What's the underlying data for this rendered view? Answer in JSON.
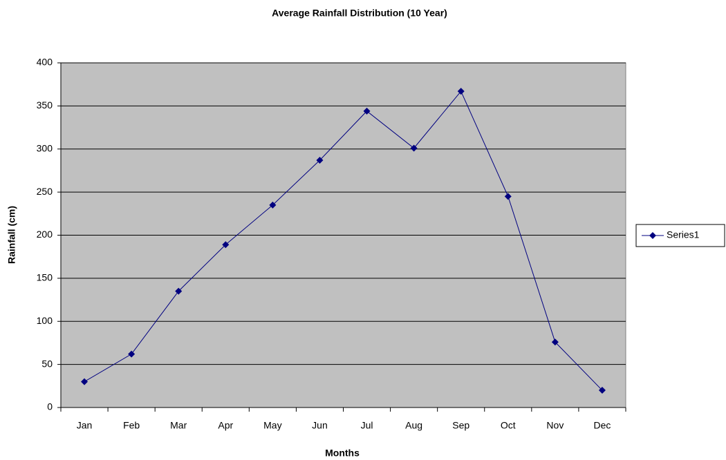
{
  "chart_data": {
    "type": "line",
    "title": "Average Rainfall Distribution (10 Year)",
    "x_label": "Months",
    "y_label": "Rainfall (cm)",
    "categories": [
      "Jan",
      "Feb",
      "Mar",
      "Apr",
      "May",
      "Jun",
      "Jul",
      "Aug",
      "Sep",
      "Oct",
      "Nov",
      "Dec"
    ],
    "series": [
      {
        "name": "Series1",
        "color": "#000080",
        "values": [
          30,
          62,
          135,
          189,
          235,
          287,
          344,
          301,
          367,
          245,
          76,
          20
        ]
      }
    ],
    "ylim": [
      0,
      400
    ],
    "yticks": [
      0,
      50,
      100,
      150,
      200,
      250,
      300,
      350,
      400
    ],
    "grid": true,
    "legend": "right",
    "plot_background": "#c0c0c0"
  }
}
